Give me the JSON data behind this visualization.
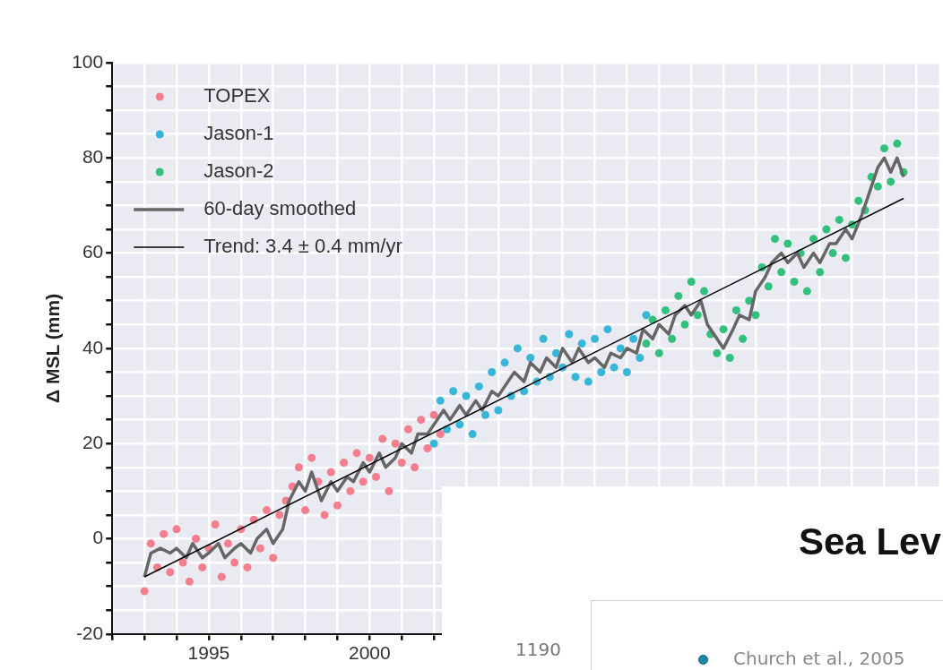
{
  "chart_data": [
    {
      "type": "scatter",
      "ylabel": "Δ MSL (mm)",
      "xlim": [
        1992,
        2017.7
      ],
      "ylim": [
        -20,
        100
      ],
      "xticks": [
        {
          "value": 1992,
          "label": null
        },
        {
          "value": 1993,
          "label": null
        },
        {
          "value": 1994,
          "label": null
        },
        1995,
        {
          "value": 1996,
          "label": null
        },
        {
          "value": 1997,
          "label": null
        },
        {
          "value": 1998,
          "label": null
        },
        {
          "value": 1999,
          "label": null
        },
        2000,
        {
          "value": 2001,
          "label": null
        },
        {
          "value": 2002,
          "label": null
        },
        {
          "value": 2003,
          "label": null
        },
        {
          "value": 2004,
          "label": null
        },
        {
          "value": 2005,
          "label": null
        },
        {
          "value": 2006,
          "label": null
        },
        {
          "value": 2007,
          "label": null
        },
        {
          "value": 2008,
          "label": null
        },
        {
          "value": 2009,
          "label": null
        },
        {
          "value": 2010,
          "label": null
        },
        {
          "value": 2011,
          "label": null
        },
        {
          "value": 2012,
          "label": null
        },
        {
          "value": 2013,
          "label": null
        },
        {
          "value": 2014,
          "label": null
        },
        {
          "value": 2015,
          "label": null
        },
        {
          "value": 2016,
          "label": null
        },
        {
          "value": 2017,
          "label": null
        }
      ],
      "yticks": [
        -20,
        {
          "value": -15,
          "label": null
        },
        {
          "value": -10,
          "label": null
        },
        {
          "value": -5,
          "label": null
        },
        0,
        {
          "value": 5,
          "label": null
        },
        {
          "value": 10,
          "label": null
        },
        {
          "value": 15,
          "label": null
        },
        20,
        {
          "value": 25,
          "label": null
        },
        {
          "value": 30,
          "label": null
        },
        {
          "value": 35,
          "label": null
        },
        40,
        {
          "value": 45,
          "label": null
        },
        {
          "value": 50,
          "label": null
        },
        {
          "value": 55,
          "label": null
        },
        60,
        {
          "value": 65,
          "label": null
        },
        {
          "value": 70,
          "label": null
        },
        {
          "value": 75,
          "label": null
        },
        80,
        {
          "value": 85,
          "label": null
        },
        {
          "value": 90,
          "label": null
        },
        {
          "value": 95,
          "label": null
        },
        100
      ],
      "grid": true,
      "legend": "top left",
      "marker": "circle",
      "series": [
        {
          "name": "TOPEX",
          "color": "#f27e8e",
          "x": [
            1993.0,
            1993.2,
            1993.4,
            1993.6,
            1993.8,
            1994.0,
            1994.2,
            1994.4,
            1994.6,
            1994.8,
            1995.0,
            1995.2,
            1995.4,
            1995.6,
            1995.8,
            1996.0,
            1996.2,
            1996.4,
            1996.6,
            1996.8,
            1997.0,
            1997.2,
            1997.4,
            1997.6,
            1997.8,
            1998.0,
            1998.2,
            1998.4,
            1998.6,
            1998.8,
            1999.0,
            1999.2,
            1999.4,
            1999.6,
            1999.8,
            2000.0,
            2000.2,
            2000.4,
            2000.6,
            2000.8,
            2001.0,
            2001.2,
            2001.4,
            2001.6,
            2001.8,
            2002.0,
            2002.2
          ],
          "values": [
            -11,
            -1,
            -6,
            1,
            -7,
            2,
            -5,
            -9,
            0,
            -6,
            -2,
            3,
            -8,
            -1,
            -5,
            2,
            -6,
            4,
            -2,
            6,
            -4,
            5,
            8,
            11,
            15,
            6,
            17,
            12,
            5,
            14,
            7,
            16,
            10,
            18,
            12,
            17,
            13,
            21,
            10,
            20,
            16,
            23,
            15,
            25,
            19,
            26,
            22
          ]
        },
        {
          "name": "Jason-1",
          "color": "#38b6d8",
          "x": [
            2002.0,
            2002.2,
            2002.4,
            2002.6,
            2002.8,
            2003.0,
            2003.2,
            2003.4,
            2003.6,
            2003.8,
            2004.0,
            2004.2,
            2004.4,
            2004.6,
            2004.8,
            2005.0,
            2005.2,
            2005.4,
            2005.6,
            2005.8,
            2006.0,
            2006.2,
            2006.4,
            2006.6,
            2006.8,
            2007.0,
            2007.2,
            2007.4,
            2007.6,
            2007.8,
            2008.0,
            2008.2,
            2008.4,
            2008.6
          ],
          "values": [
            20,
            29,
            23,
            31,
            24,
            30,
            22,
            32,
            26,
            35,
            27,
            37,
            30,
            40,
            31,
            38,
            33,
            42,
            34,
            39,
            36,
            43,
            34,
            41,
            33,
            42,
            35,
            44,
            36,
            40,
            35,
            42,
            38,
            47
          ]
        },
        {
          "name": "Jason-2",
          "color": "#33c07c",
          "x": [
            2008.6,
            2008.8,
            2009.0,
            2009.2,
            2009.4,
            2009.6,
            2009.8,
            2010.0,
            2010.2,
            2010.4,
            2010.6,
            2010.8,
            2011.0,
            2011.2,
            2011.4,
            2011.6,
            2011.8,
            2012.0,
            2012.2,
            2012.4,
            2012.6,
            2012.8,
            2013.0,
            2013.2,
            2013.4,
            2013.6,
            2013.8,
            2014.0,
            2014.2,
            2014.4,
            2014.6,
            2014.8,
            2015.0,
            2015.2,
            2015.4,
            2015.6,
            2015.8,
            2016.0,
            2016.2,
            2016.4,
            2016.6
          ],
          "values": [
            41,
            46,
            39,
            48,
            42,
            51,
            45,
            54,
            47,
            52,
            43,
            39,
            44,
            38,
            48,
            42,
            50,
            47,
            57,
            53,
            63,
            56,
            62,
            54,
            60,
            52,
            63,
            56,
            65,
            60,
            67,
            59,
            66,
            71,
            69,
            76,
            74,
            82,
            75,
            83,
            77
          ]
        },
        {
          "name": "60-day smoothed",
          "type": "line",
          "marker": "none",
          "color": "#666666",
          "x": [
            1993.0,
            1993.2,
            1993.5,
            1993.8,
            1994.0,
            1994.3,
            1994.5,
            1994.8,
            1995.0,
            1995.3,
            1995.5,
            1995.8,
            1996.0,
            1996.3,
            1996.5,
            1996.8,
            1997.0,
            1997.3,
            1997.5,
            1997.8,
            1998.0,
            1998.2,
            1998.5,
            1998.8,
            1999.0,
            1999.3,
            1999.5,
            1999.8,
            2000.0,
            2000.3,
            2000.5,
            2000.8,
            2001.0,
            2001.3,
            2001.5,
            2001.8,
            2002.0,
            2002.3,
            2002.5,
            2002.8,
            2003.0,
            2003.3,
            2003.5,
            2003.8,
            2004.0,
            2004.3,
            2004.5,
            2004.8,
            2005.0,
            2005.3,
            2005.5,
            2005.8,
            2006.0,
            2006.3,
            2006.5,
            2006.8,
            2007.0,
            2007.3,
            2007.5,
            2007.8,
            2008.0,
            2008.3,
            2008.5,
            2008.8,
            2009.0,
            2009.3,
            2009.5,
            2009.8,
            2010.0,
            2010.3,
            2010.5,
            2010.8,
            2011.0,
            2011.3,
            2011.5,
            2011.8,
            2012.0,
            2012.3,
            2012.5,
            2012.8,
            2013.0,
            2013.3,
            2013.5,
            2013.8,
            2014.0,
            2014.3,
            2014.5,
            2014.8,
            2015.0,
            2015.3,
            2015.5,
            2015.8,
            2016.0,
            2016.2,
            2016.4,
            2016.6
          ],
          "values": [
            -8,
            -3,
            -2,
            -3,
            -2,
            -4,
            -1,
            -4,
            -3,
            -1,
            -4,
            -2,
            -1,
            -3,
            0,
            2,
            -1,
            2,
            8,
            12,
            10,
            14,
            8,
            12,
            10,
            13,
            12,
            16,
            14,
            18,
            15,
            17,
            20,
            18,
            22,
            22,
            24,
            27,
            25,
            28,
            26,
            29,
            27,
            31,
            30,
            33,
            35,
            33,
            37,
            35,
            38,
            36,
            40,
            37,
            40,
            37,
            38,
            36,
            39,
            38,
            40,
            39,
            44,
            42,
            45,
            43,
            47,
            49,
            47,
            50,
            45,
            42,
            40,
            44,
            47,
            46,
            52,
            55,
            58,
            60,
            58,
            60,
            57,
            60,
            58,
            62,
            62,
            65,
            63,
            68,
            72,
            78,
            80,
            77,
            80,
            76
          ]
        },
        {
          "name": "Trend: 3.4 ± 0.4 mm/yr",
          "type": "line",
          "marker": "none",
          "color": "#000000",
          "x": [
            1993.0,
            2016.6
          ],
          "values": [
            -8,
            71.5
          ]
        }
      ]
    },
    {
      "type": "other",
      "title": "Sea Lev",
      "annotations": [
        "1190",
        "Church et al., 2005"
      ]
    }
  ]
}
